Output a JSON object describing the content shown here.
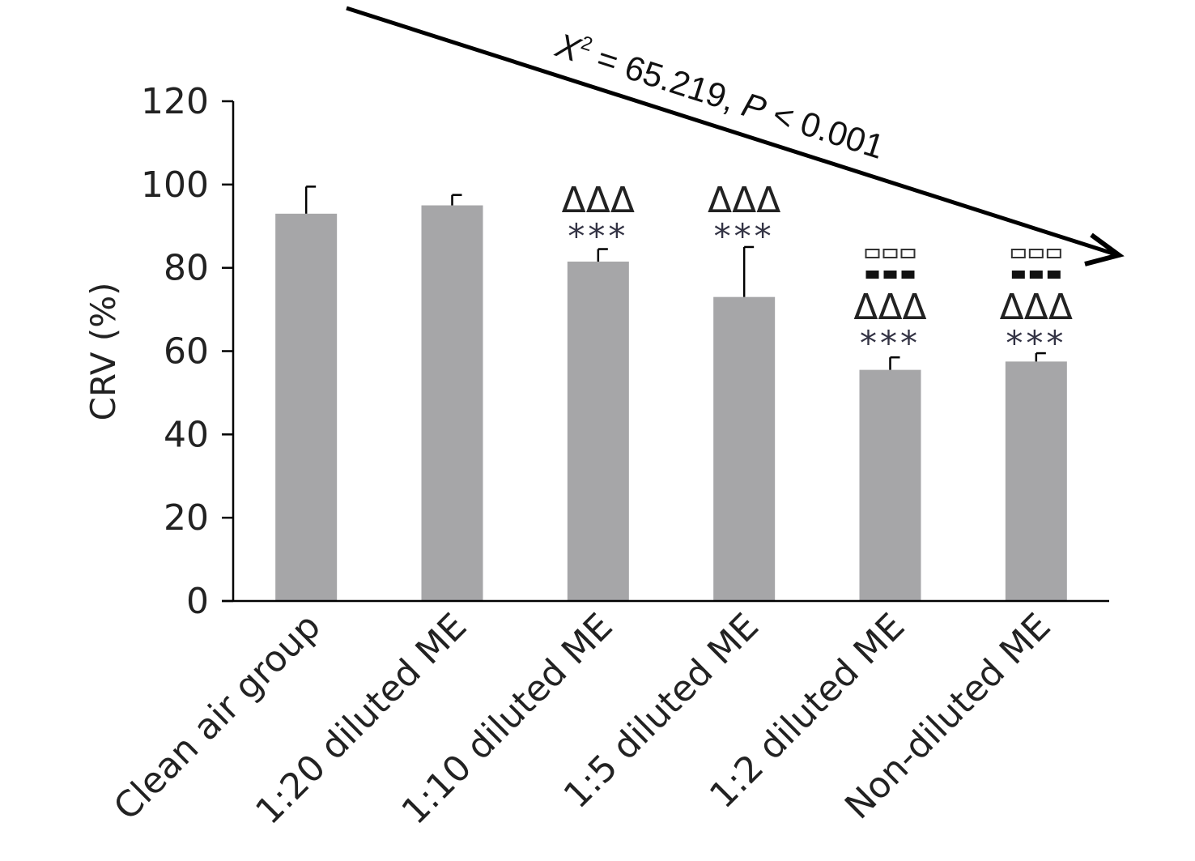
{
  "chart_data": {
    "type": "bar",
    "categories": [
      "Clean air group",
      "1:20 diluted ME",
      "1:10 diluted ME",
      "1:5 diluted ME",
      "1:2 diluted ME",
      "Non-diluted ME"
    ],
    "values": [
      93,
      95,
      81.5,
      73,
      55.5,
      57.5
    ],
    "error_upper": [
      99.5,
      97.5,
      84.5,
      85,
      58.5,
      59.5
    ],
    "ylabel": "CRV (%)",
    "xlabel": "",
    "ylim": [
      0,
      120
    ],
    "yticks": [
      0,
      20,
      40,
      60,
      80,
      100,
      120
    ],
    "grid": false,
    "bar_color": "#a6a6a8",
    "significance": [
      {
        "stars": "",
        "deltas": "",
        "filled_squares": "",
        "open_squares": ""
      },
      {
        "stars": "",
        "deltas": "",
        "filled_squares": "",
        "open_squares": ""
      },
      {
        "stars": "***",
        "deltas": "ΔΔΔ",
        "filled_squares": "",
        "open_squares": ""
      },
      {
        "stars": "***",
        "deltas": "ΔΔΔ",
        "filled_squares": "",
        "open_squares": ""
      },
      {
        "stars": "***",
        "deltas": "ΔΔΔ",
        "filled_squares": "■■■",
        "open_squares": "▫▫▫"
      },
      {
        "stars": "***",
        "deltas": "ΔΔΔ",
        "filled_squares": "■■■",
        "open_squares": "▫▫▫"
      }
    ],
    "trend_annotation": {
      "chi_symbol": "X",
      "chi_exponent": "2",
      "stat_text": " = 65.219, ",
      "p_symbol": "P",
      "p_text": " < 0.001"
    }
  }
}
